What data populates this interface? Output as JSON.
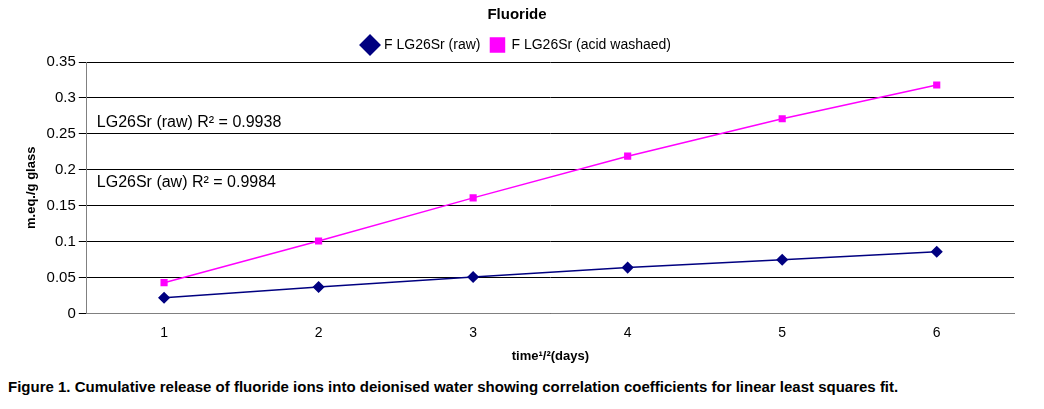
{
  "chart_data": {
    "type": "line",
    "title": "Fluoride",
    "x_label": "time¹/²(days)",
    "y_label": "m.eq./g glass",
    "categories": [
      1,
      2,
      3,
      4,
      5,
      6
    ],
    "series": [
      {
        "name": "F LG26Sr (raw)",
        "color": "#000080",
        "marker": "diamond",
        "values": [
          0.022,
          0.037,
          0.051,
          0.064,
          0.075,
          0.086
        ]
      },
      {
        "name": "F LG26Sr (acid washaed)",
        "color": "#ff00ff",
        "marker": "square",
        "values": [
          0.043,
          0.101,
          0.161,
          0.219,
          0.271,
          0.318
        ]
      }
    ],
    "annotations": [
      "LG26Sr (raw) R² = 0.9938",
      "LG26Sr (aw) R² = 0.9984"
    ],
    "ylim": [
      0,
      0.35
    ],
    "yticks": [
      0,
      0.05,
      0.1,
      0.15,
      0.2,
      0.25,
      0.3,
      0.35
    ],
    "grid": true,
    "legend": "top"
  },
  "caption": "Figure 1. Cumulative release of fluoride ions into deionised water showing correlation coefficients for linear least squares fit."
}
